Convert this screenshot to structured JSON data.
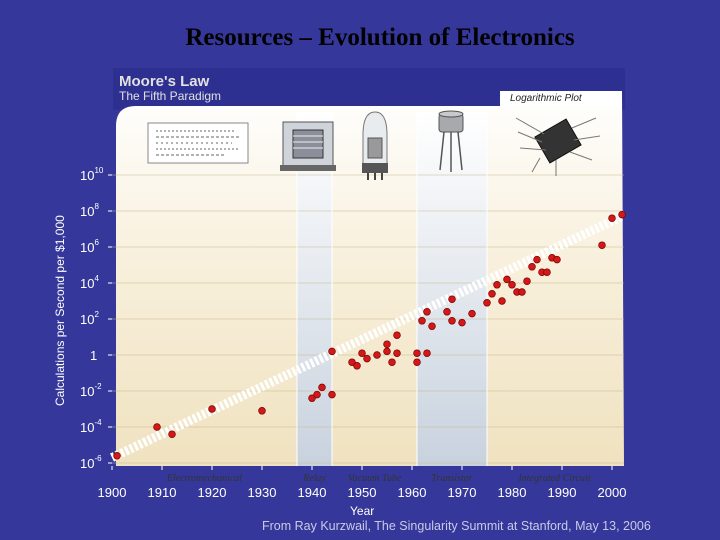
{
  "slide": {
    "title": "Resources – Evolution of Electronics",
    "footer": "From Ray Kurzwail, The Singularity Summit at Stanford, May 13, 2006"
  },
  "chart_data": {
    "type": "scatter",
    "title": "Moore's Law",
    "subtitle": "The Fifth Paradigm",
    "badge": "Logarithmic Plot",
    "xlabel": "Year",
    "ylabel": "Calculations per Second per $1,000",
    "xlim": [
      1900,
      2002
    ],
    "ylim": [
      -6,
      10
    ],
    "yscale": "log10",
    "x_ticks": [
      "1900",
      "1910",
      "1920",
      "1930",
      "1940",
      "1950",
      "1960",
      "1970",
      "1980",
      "1990",
      "2000"
    ],
    "y_ticks": [
      {
        "exp": 10,
        "base": "10",
        "sup": "10"
      },
      {
        "exp": 8,
        "base": "10",
        "sup": "8"
      },
      {
        "exp": 6,
        "base": "10",
        "sup": "6"
      },
      {
        "exp": 4,
        "base": "10",
        "sup": "4"
      },
      {
        "exp": 2,
        "base": "10",
        "sup": "2"
      },
      {
        "exp": 0,
        "base": "1",
        "sup": ""
      },
      {
        "exp": -2,
        "base": "10",
        "sup": "-2"
      },
      {
        "exp": -4,
        "base": "10",
        "sup": "-4"
      },
      {
        "exp": -6,
        "base": "10",
        "sup": "-6"
      }
    ],
    "eras": [
      {
        "name": "Electromechanical",
        "start": 1900,
        "end": 1937,
        "color": "#f6ead0"
      },
      {
        "name": "Relay",
        "start": 1937,
        "end": 1944,
        "color": "#c8d2de"
      },
      {
        "name": "Vacuum Tube",
        "start": 1944,
        "end": 1961,
        "color": "#f6ead0"
      },
      {
        "name": "Transistor",
        "start": 1961,
        "end": 1975,
        "color": "#c8d2de"
      },
      {
        "name": "Integrated Circuit",
        "start": 1975,
        "end": 2002,
        "color": "#f6ead0"
      }
    ],
    "trend": {
      "x": [
        1900,
        2002
      ],
      "y": [
        -5.7,
        7.7
      ]
    },
    "points": [
      {
        "x": 1901,
        "y": -5.6
      },
      {
        "x": 1909,
        "y": -4.0
      },
      {
        "x": 1912,
        "y": -4.4
      },
      {
        "x": 1920,
        "y": -3.0
      },
      {
        "x": 1930,
        "y": -3.1
      },
      {
        "x": 1940,
        "y": -2.4
      },
      {
        "x": 1941,
        "y": -2.2
      },
      {
        "x": 1942,
        "y": -1.8
      },
      {
        "x": 1944,
        "y": -2.2
      },
      {
        "x": 1944,
        "y": 0.2
      },
      {
        "x": 1948,
        "y": -0.4
      },
      {
        "x": 1949,
        "y": -0.6
      },
      {
        "x": 1950,
        "y": 0.1
      },
      {
        "x": 1951,
        "y": -0.2
      },
      {
        "x": 1953,
        "y": 0.0
      },
      {
        "x": 1955,
        "y": 0.2
      },
      {
        "x": 1955,
        "y": 0.6
      },
      {
        "x": 1956,
        "y": -0.4
      },
      {
        "x": 1957,
        "y": 0.1
      },
      {
        "x": 1957,
        "y": 1.1
      },
      {
        "x": 1961,
        "y": -0.4
      },
      {
        "x": 1961,
        "y": 0.1
      },
      {
        "x": 1962,
        "y": 1.9
      },
      {
        "x": 1963,
        "y": 0.1
      },
      {
        "x": 1963,
        "y": 2.4
      },
      {
        "x": 1964,
        "y": 1.6
      },
      {
        "x": 1967,
        "y": 2.4
      },
      {
        "x": 1968,
        "y": 1.9
      },
      {
        "x": 1968,
        "y": 3.1
      },
      {
        "x": 1970,
        "y": 1.8
      },
      {
        "x": 1972,
        "y": 2.3
      },
      {
        "x": 1975,
        "y": 2.9
      },
      {
        "x": 1976,
        "y": 3.4
      },
      {
        "x": 1977,
        "y": 3.9
      },
      {
        "x": 1978,
        "y": 3.0
      },
      {
        "x": 1979,
        "y": 4.2
      },
      {
        "x": 1980,
        "y": 3.9
      },
      {
        "x": 1981,
        "y": 3.5
      },
      {
        "x": 1982,
        "y": 3.5
      },
      {
        "x": 1983,
        "y": 4.1
      },
      {
        "x": 1984,
        "y": 4.9
      },
      {
        "x": 1985,
        "y": 5.3
      },
      {
        "x": 1986,
        "y": 4.6
      },
      {
        "x": 1987,
        "y": 4.6
      },
      {
        "x": 1988,
        "y": 5.4
      },
      {
        "x": 1989,
        "y": 5.3
      },
      {
        "x": 1998,
        "y": 6.1
      },
      {
        "x": 2000,
        "y": 7.6
      },
      {
        "x": 2002,
        "y": 7.8
      }
    ]
  }
}
